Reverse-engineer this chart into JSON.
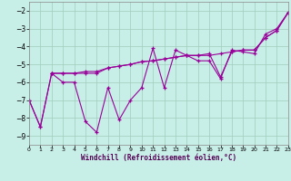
{
  "xlabel": "Windchill (Refroidissement éolien,°C)",
  "bg_color": "#c8eee8",
  "grid_color": "#a0ccbb",
  "line_color": "#990099",
  "xlim": [
    0,
    23
  ],
  "ylim": [
    -9.5,
    -1.5
  ],
  "yticks": [
    -9,
    -8,
    -7,
    -6,
    -5,
    -4,
    -3,
    -2
  ],
  "xticks": [
    0,
    1,
    2,
    3,
    4,
    5,
    6,
    7,
    8,
    9,
    10,
    11,
    12,
    13,
    14,
    15,
    16,
    17,
    18,
    19,
    20,
    21,
    22,
    23
  ],
  "series": [
    {
      "x": [
        0,
        1,
        2,
        3,
        4,
        5,
        6,
        7,
        8,
        9,
        10,
        11,
        12,
        13,
        14,
        15,
        16,
        17,
        18,
        19,
        20,
        21,
        22,
        23
      ],
      "y": [
        -7.0,
        -8.5,
        -5.5,
        -6.0,
        -6.0,
        -8.2,
        -8.8,
        -6.3,
        -8.1,
        -7.0,
        -6.3,
        -4.1,
        -6.3,
        -4.2,
        -4.5,
        -4.8,
        -4.8,
        -5.8,
        -4.2,
        -4.3,
        -4.4,
        -3.3,
        -3.0,
        -2.1
      ]
    },
    {
      "x": [
        0,
        1,
        2,
        3,
        4,
        5,
        6,
        7,
        8,
        9,
        10,
        11,
        12,
        13,
        14,
        15,
        16,
        17,
        18,
        19,
        20,
        21,
        22,
        23
      ],
      "y": [
        -7.0,
        -8.5,
        -5.5,
        -5.5,
        -5.5,
        -5.5,
        -5.5,
        -5.2,
        -5.1,
        -5.0,
        -4.85,
        -4.8,
        -4.7,
        -4.6,
        -4.5,
        -4.5,
        -4.5,
        -4.4,
        -4.3,
        -4.2,
        -4.2,
        -3.5,
        -3.1,
        -2.1
      ]
    },
    {
      "x": [
        2,
        3,
        4,
        5,
        6,
        7,
        8,
        9,
        10,
        11,
        12,
        13,
        14,
        15,
        16,
        17,
        18,
        19,
        20,
        21,
        22,
        23
      ],
      "y": [
        -5.5,
        -5.5,
        -5.5,
        -5.4,
        -5.4,
        -5.2,
        -5.1,
        -5.0,
        -4.85,
        -4.8,
        -4.7,
        -4.6,
        -4.5,
        -4.5,
        -4.4,
        -5.7,
        -4.3,
        -4.2,
        -4.2,
        -3.5,
        -3.1,
        -2.1
      ]
    }
  ]
}
